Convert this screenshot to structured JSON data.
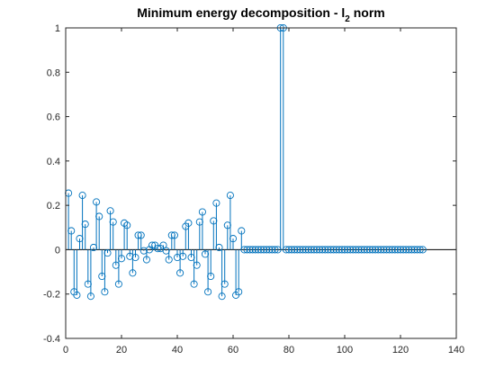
{
  "chart_data": {
    "type": "stem",
    "title_main": "Minimum energy decomposition - l",
    "title_sub": "2",
    "title_tail": " norm",
    "xlim": [
      0,
      140
    ],
    "ylim": [
      -0.4,
      1
    ],
    "xticks": [
      0,
      20,
      40,
      60,
      80,
      100,
      120,
      140
    ],
    "yticks": [
      -0.4,
      -0.2,
      0,
      0.2,
      0.4,
      0.6,
      0.8,
      1
    ],
    "xtick_labels": [
      "0",
      "20",
      "40",
      "60",
      "80",
      "100",
      "120",
      "140"
    ],
    "ytick_labels": [
      "-0.4",
      "-0.2",
      "0",
      "0.2",
      "0.4",
      "0.6",
      "0.8",
      "1"
    ],
    "grid": false,
    "baseline": 0,
    "series_color": "#0072BD",
    "x_start": 1,
    "values": [
      0.255,
      0.085,
      -0.19,
      -0.205,
      0.05,
      0.245,
      0.115,
      -0.155,
      -0.21,
      0.01,
      0.215,
      0.15,
      -0.12,
      -0.19,
      -0.015,
      0.175,
      0.125,
      -0.07,
      -0.155,
      -0.04,
      0.12,
      0.11,
      -0.03,
      -0.105,
      -0.035,
      0.065,
      0.065,
      -0.005,
      -0.045,
      0.0,
      0.02,
      0.02,
      0.005,
      0.005,
      0.02,
      -0.005,
      -0.045,
      0.065,
      0.065,
      -0.035,
      -0.105,
      -0.03,
      0.105,
      0.12,
      -0.035,
      -0.155,
      -0.07,
      0.125,
      0.17,
      -0.02,
      -0.19,
      -0.12,
      0.13,
      0.21,
      0.01,
      -0.21,
      -0.155,
      0.11,
      0.245,
      0.05,
      -0.205,
      -0.19,
      0.085,
      0.0,
      0.0,
      0.0,
      0.0,
      0.0,
      0.0,
      0.0,
      0.0,
      0.0,
      0.0,
      0.0,
      0.0,
      0.0,
      1.0,
      1.0,
      0.0,
      0.0,
      0.0,
      0.0,
      0.0,
      0.0,
      0.0,
      0.0,
      0.0,
      0.0,
      0.0,
      0.0,
      0.0,
      0.0,
      0.0,
      0.0,
      0.0,
      0.0,
      0.0,
      0.0,
      0.0,
      0.0,
      0.0,
      0.0,
      0.0,
      0.0,
      0.0,
      0.0,
      0.0,
      0.0,
      0.0,
      0.0,
      0.0,
      0.0,
      0.0,
      0.0,
      0.0,
      0.0,
      0.0,
      0.0,
      0.0,
      0.0,
      0.0,
      0.0,
      0.0,
      0.0,
      0.0,
      0.0,
      0.0,
      0.0
    ]
  }
}
